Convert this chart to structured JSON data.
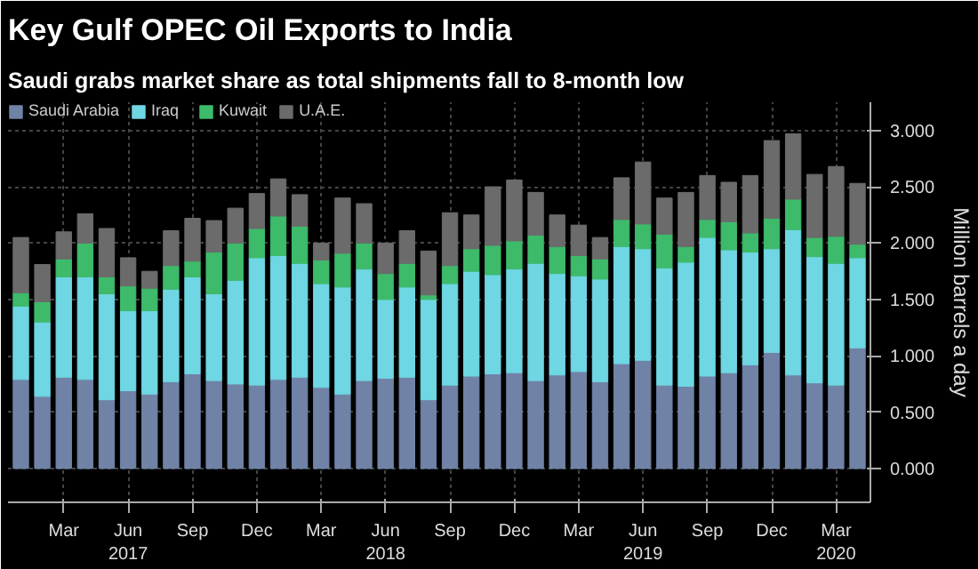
{
  "chart_data": {
    "type": "bar",
    "stacked": true,
    "title": "Key Gulf OPEC Oil Exports to India",
    "subtitle": "Saudi grabs market share as total shipments fall to 8-month low",
    "ylabel": "Million barrels a day",
    "categories": [
      null,
      null,
      "Mar",
      null,
      null,
      "Jun\n2017",
      null,
      null,
      "Sep",
      null,
      null,
      "Dec",
      null,
      null,
      "Mar",
      null,
      null,
      "Jun\n2018",
      null,
      null,
      "Sep",
      null,
      null,
      "Dec",
      null,
      null,
      "Mar",
      null,
      null,
      "Jun\n2019",
      null,
      null,
      "Sep",
      null,
      null,
      "Dec",
      null,
      null,
      "Mar\n2020",
      null
    ],
    "series": [
      {
        "name": "Saudi Arabia",
        "color": "#7083a6",
        "values": [
          0.79,
          0.64,
          0.81,
          0.79,
          0.61,
          0.69,
          0.66,
          0.77,
          0.84,
          0.78,
          0.75,
          0.74,
          0.79,
          0.81,
          0.72,
          0.66,
          0.78,
          0.8,
          0.81,
          0.61,
          0.74,
          0.82,
          0.84,
          0.85,
          0.78,
          0.83,
          0.86,
          0.77,
          0.93,
          0.96,
          0.74,
          0.73,
          0.82,
          0.85,
          0.92,
          1.03,
          0.83,
          0.76,
          0.74,
          1.07
        ]
      },
      {
        "name": "Iraq",
        "color": "#6fd6e3",
        "values": [
          0.65,
          0.66,
          0.89,
          0.91,
          0.94,
          0.71,
          0.74,
          0.82,
          0.86,
          0.77,
          0.92,
          1.13,
          1.1,
          1.01,
          0.92,
          0.95,
          0.99,
          0.7,
          0.8,
          0.89,
          0.9,
          0.93,
          0.88,
          0.92,
          1.04,
          0.9,
          0.85,
          0.91,
          1.04,
          0.99,
          1.04,
          1.1,
          1.23,
          1.09,
          1.0,
          0.92,
          1.29,
          1.12,
          1.08,
          0.8
        ]
      },
      {
        "name": "Kuwait",
        "color": "#3dbb6b",
        "values": [
          0.12,
          0.18,
          0.16,
          0.3,
          0.15,
          0.22,
          0.2,
          0.21,
          0.14,
          0.37,
          0.33,
          0.26,
          0.35,
          0.33,
          0.21,
          0.3,
          0.23,
          0.23,
          0.21,
          0.04,
          0.16,
          0.2,
          0.26,
          0.25,
          0.25,
          0.24,
          0.18,
          0.18,
          0.24,
          0.22,
          0.3,
          0.14,
          0.16,
          0.25,
          0.17,
          0.27,
          0.27,
          0.17,
          0.24,
          0.12
        ]
      },
      {
        "name": "U.A.E.",
        "color": "#6b6b6b",
        "values": [
          0.49,
          0.33,
          0.24,
          0.26,
          0.43,
          0.25,
          0.15,
          0.31,
          0.38,
          0.28,
          0.31,
          0.31,
          0.33,
          0.28,
          0.15,
          0.49,
          0.35,
          0.27,
          0.29,
          0.39,
          0.47,
          0.3,
          0.52,
          0.54,
          0.38,
          0.28,
          0.27,
          0.19,
          0.37,
          0.55,
          0.32,
          0.48,
          0.39,
          0.35,
          0.51,
          0.69,
          0.58,
          0.56,
          0.62,
          0.54
        ]
      }
    ],
    "ylim": [
      -0.3,
      3.25
    ],
    "yticks": [
      {
        "value": 0,
        "label": "0.000"
      },
      {
        "value": 0.5,
        "label": "0.500"
      },
      {
        "value": 1,
        "label": "1.000"
      },
      {
        "value": 1.5,
        "label": "1.500"
      },
      {
        "value": 2,
        "label": "2.000"
      },
      {
        "value": 2.5,
        "label": "2.500"
      },
      {
        "value": 3,
        "label": "3.000"
      }
    ],
    "grid": true,
    "legend": "top left"
  }
}
